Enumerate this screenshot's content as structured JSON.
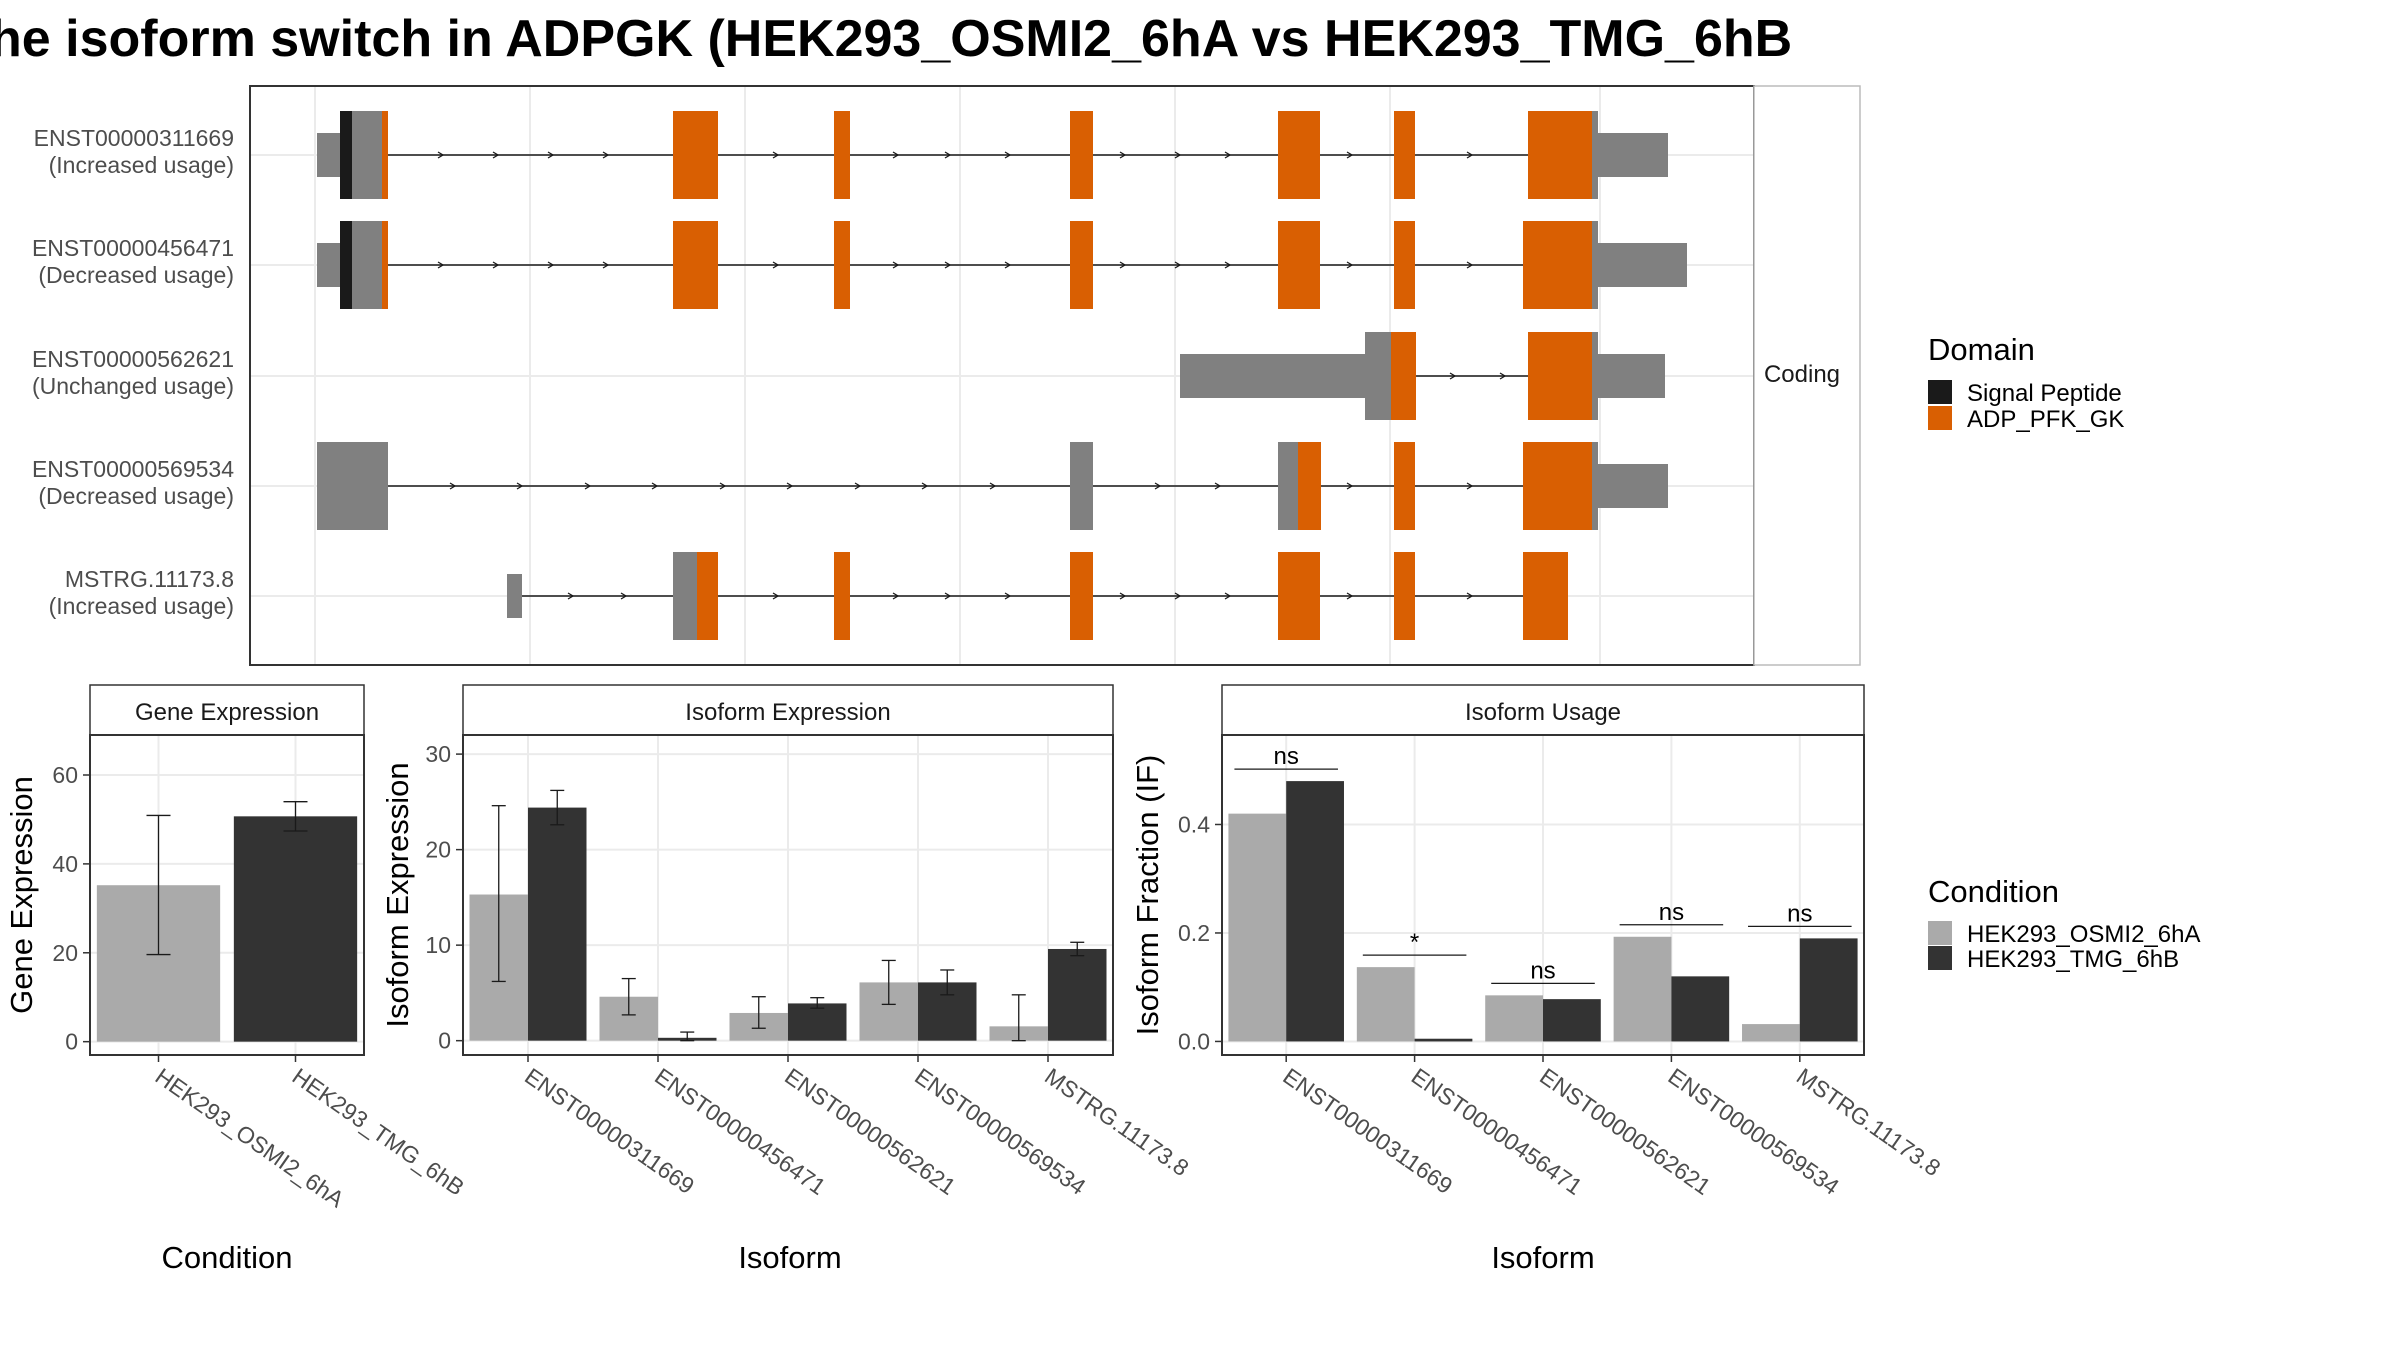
{
  "title": "he isoform switch in ADPGK (HEK293_OSMI2_6hA vs HEK293_TMG_6hB",
  "colors": {
    "utr": "#808080",
    "signal_peptide": "#1a1a1a",
    "adp_pfk_gk": "#d95f02",
    "cond_a": "#aaaaaa",
    "cond_b": "#333333"
  },
  "structure": {
    "strip_label": "Coding",
    "transcripts": [
      {
        "id": "ENST00000311669",
        "status": "(Increased usage)"
      },
      {
        "id": "ENST00000456471",
        "status": "(Decreased usage)"
      },
      {
        "id": "ENST00000562621",
        "status": "(Unchanged usage)"
      },
      {
        "id": "ENST00000569534",
        "status": "(Decreased usage)"
      },
      {
        "id": "MSTRG.11173.8",
        "status": "(Increased usage)"
      }
    ],
    "domain_legend": {
      "title": "Domain",
      "items": [
        {
          "label": "Signal Peptide",
          "color_key": "signal_peptide"
        },
        {
          "label": "ADP_PFK_GK",
          "color_key": "adp_pfk_gk"
        }
      ]
    }
  },
  "condition_legend": {
    "title": "Condition",
    "items": [
      {
        "label": "HEK293_OSMI2_6hA",
        "color_key": "cond_a"
      },
      {
        "label": "HEK293_TMG_6hB",
        "color_key": "cond_b"
      }
    ]
  },
  "chart_data": [
    {
      "panel": "Gene Expression",
      "type": "bar",
      "xlabel": "Condition",
      "ylabel": "Gene Expression",
      "ylim": [
        -3,
        69
      ],
      "yticks": [
        0,
        20,
        40,
        60
      ],
      "categories": [
        "HEK293_OSMI2_6hA",
        "HEK293_TMG_6hB"
      ],
      "values": [
        35.2,
        50.7
      ],
      "err_low": [
        19.6,
        47.4
      ],
      "err_high": [
        50.9,
        54.0
      ]
    },
    {
      "panel": "Isoform Expression",
      "type": "bar",
      "xlabel": "Isoform",
      "ylabel": "Isoform Expression",
      "ylim": [
        -1.5,
        32
      ],
      "yticks": [
        0,
        10,
        20,
        30
      ],
      "categories": [
        "ENST00000311669",
        "ENST00000456471",
        "ENST00000562621",
        "ENST00000569534",
        "MSTRG.11173.8"
      ],
      "series": [
        {
          "name": "HEK293_OSMI2_6hA",
          "values": [
            15.3,
            4.6,
            2.9,
            6.1,
            1.5
          ],
          "err_low": [
            6.2,
            2.7,
            1.3,
            3.8,
            0.0
          ],
          "err_high": [
            24.6,
            6.5,
            4.6,
            8.4,
            4.8
          ]
        },
        {
          "name": "HEK293_TMG_6hB",
          "values": [
            24.4,
            0.3,
            3.9,
            6.1,
            9.6
          ],
          "err_low": [
            22.6,
            0.0,
            3.4,
            4.8,
            8.9
          ],
          "err_high": [
            26.2,
            0.9,
            4.5,
            7.4,
            10.3
          ]
        }
      ]
    },
    {
      "panel": "Isoform Usage",
      "type": "bar",
      "xlabel": "Isoform",
      "ylabel": "Isoform Fraction (IF)",
      "ylim": [
        -0.025,
        0.565
      ],
      "yticks": [
        0.0,
        0.2,
        0.4
      ],
      "ytick_labels": [
        "0.0",
        "0.2",
        "0.4"
      ],
      "categories": [
        "ENST00000311669",
        "ENST00000456471",
        "ENST00000562621",
        "ENST00000569534",
        "MSTRG.11173.8"
      ],
      "series": [
        {
          "name": "HEK293_OSMI2_6hA",
          "values": [
            0.42,
            0.137,
            0.085,
            0.193,
            0.032
          ]
        },
        {
          "name": "HEK293_TMG_6hB",
          "values": [
            0.48,
            0.005,
            0.078,
            0.12,
            0.19
          ]
        }
      ],
      "significance": [
        "ns",
        "*",
        "ns",
        "ns",
        "ns"
      ]
    }
  ]
}
